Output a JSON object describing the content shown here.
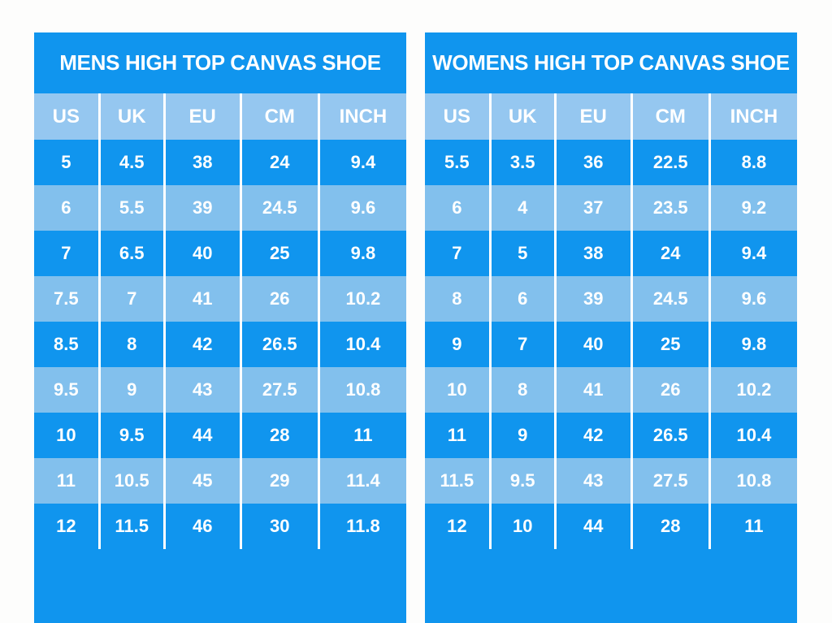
{
  "colors": {
    "primary_blue": "#1095EE",
    "light_row_blue": "#82C0ED",
    "header_band_blue": "#95C7F0",
    "divider_white": "#FFFFFF",
    "text_white": "#FFFFFF",
    "page_background": "#FDFDFC"
  },
  "chart_data": [
    {
      "type": "table",
      "title": "MENS HIGH TOP CANVAS SHOE",
      "columns": [
        "US",
        "UK",
        "EU",
        "CM",
        "INCH"
      ],
      "rows": [
        [
          "5",
          "4.5",
          "38",
          "24",
          "9.4"
        ],
        [
          "6",
          "5.5",
          "39",
          "24.5",
          "9.6"
        ],
        [
          "7",
          "6.5",
          "40",
          "25",
          "9.8"
        ],
        [
          "7.5",
          "7",
          "41",
          "26",
          "10.2"
        ],
        [
          "8.5",
          "8",
          "42",
          "26.5",
          "10.4"
        ],
        [
          "9.5",
          "9",
          "43",
          "27.5",
          "10.8"
        ],
        [
          "10",
          "9.5",
          "44",
          "28",
          "11"
        ],
        [
          "11",
          "10.5",
          "45",
          "29",
          "11.4"
        ],
        [
          "12",
          "11.5",
          "46",
          "30",
          "11.8"
        ]
      ]
    },
    {
      "type": "table",
      "title": "WOMENS HIGH TOP CANVAS SHOE",
      "columns": [
        "US",
        "UK",
        "EU",
        "CM",
        "INCH"
      ],
      "rows": [
        [
          "5.5",
          "3.5",
          "36",
          "22.5",
          "8.8"
        ],
        [
          "6",
          "4",
          "37",
          "23.5",
          "9.2"
        ],
        [
          "7",
          "5",
          "38",
          "24",
          "9.4"
        ],
        [
          "8",
          "6",
          "39",
          "24.5",
          "9.6"
        ],
        [
          "9",
          "7",
          "40",
          "25",
          "9.8"
        ],
        [
          "10",
          "8",
          "41",
          "26",
          "10.2"
        ],
        [
          "11",
          "9",
          "42",
          "26.5",
          "10.4"
        ],
        [
          "11.5",
          "9.5",
          "43",
          "27.5",
          "10.8"
        ],
        [
          "12",
          "10",
          "44",
          "28",
          "11"
        ]
      ]
    }
  ]
}
